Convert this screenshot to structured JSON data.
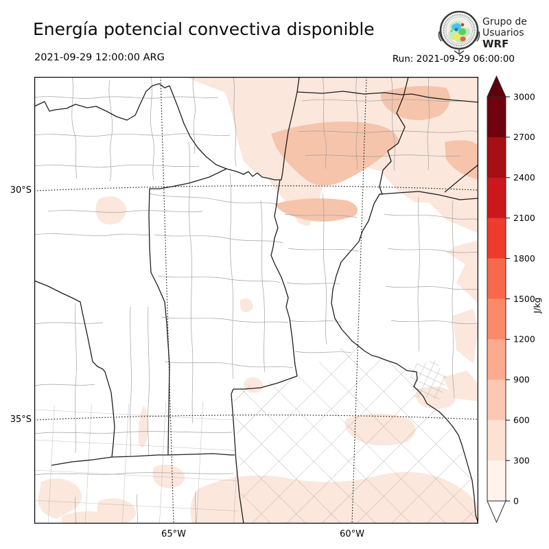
{
  "header": {
    "title": "Energía potencial convectiva disponible",
    "logo": {
      "line1": "Grupo de",
      "line2": "Usuarios",
      "line3": "WRF"
    }
  },
  "times": {
    "valid": "2021-09-29 12:00:00 ARG",
    "run": "Run: 2021-09-29 06:00:00"
  },
  "map": {
    "lat_ticks": [
      "30°S",
      "35°S"
    ],
    "lon_ticks": [
      "65°W",
      "60°W"
    ],
    "colors": {
      "province_boundary": "#1c1c1c",
      "department_boundary": "#a0a0a0",
      "shade_0_300": "#fbe7dc",
      "shade_300_600": "#f5c4ab",
      "background": "#ffffff"
    }
  },
  "colorbar": {
    "unit": "J/kg",
    "tick_labels": [
      "3000",
      "2700",
      "2400",
      "2100",
      "1800",
      "1500",
      "1200",
      "900",
      "600",
      "300",
      "0"
    ],
    "segment_colors_top_to_bottom": [
      "#70020f",
      "#a50f15",
      "#cb181d",
      "#ef3b2c",
      "#f8694c",
      "#fb8a6a",
      "#fcab8f",
      "#fcc8b1",
      "#fde2d4",
      "#fff3ec"
    ],
    "arrow_over_color": "#5c000c",
    "arrow_under_color": "#ffffff"
  }
}
